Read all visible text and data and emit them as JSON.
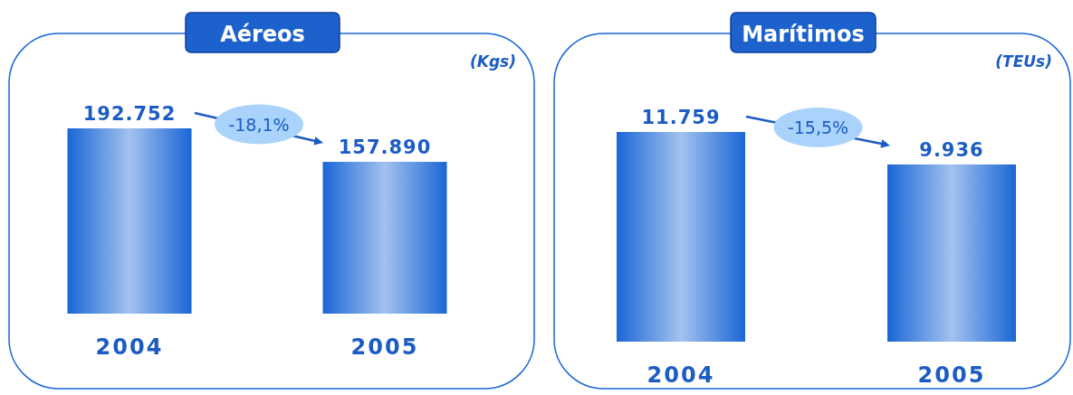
{
  "chart_data": [
    {
      "type": "bar",
      "title": "Aéreos",
      "subtitle": "(Kgs)",
      "categories": [
        "2004",
        "2005"
      ],
      "values": [
        192752,
        157890
      ],
      "value_labels": [
        "192.752",
        "157.890"
      ],
      "color": "#1a66d6",
      "annotations": [
        "-18,1%"
      ]
    },
    {
      "type": "bar",
      "title": "Marítimos",
      "subtitle": "(TEUs)",
      "categories": [
        "2004",
        "2005"
      ],
      "values": [
        11759,
        9936
      ],
      "value_labels": [
        "11.759",
        "9.936"
      ],
      "color": "#1a66d6",
      "annotations": [
        "-15,5%"
      ]
    }
  ]
}
